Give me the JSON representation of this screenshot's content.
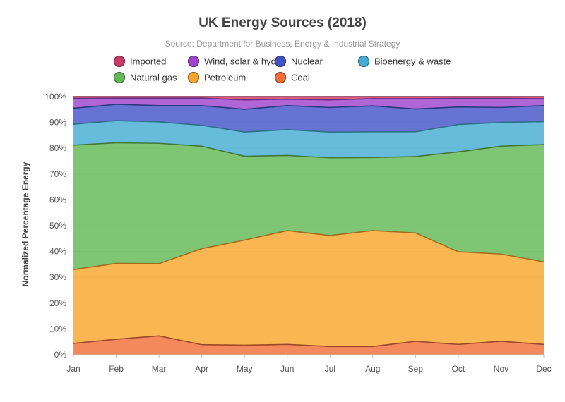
{
  "chart_data": {
    "type": "area",
    "stacked": true,
    "normalized": true,
    "title": "UK Energy Sources (2018)",
    "subtitle": "Source: Department for Business, Energy & Industrial Strategy",
    "xlabel": "",
    "ylabel": "Normalized Percentage Energy",
    "ylim": [
      0,
      100
    ],
    "y_ticks": [
      "0%",
      "10%",
      "20%",
      "30%",
      "40%",
      "50%",
      "60%",
      "70%",
      "80%",
      "90%",
      "100%"
    ],
    "grid": true,
    "legend_position": "top",
    "categories": [
      "Jan",
      "Feb",
      "Mar",
      "Apr",
      "May",
      "Jun",
      "Jul",
      "Aug",
      "Sep",
      "Oct",
      "Nov",
      "Dec"
    ],
    "series": [
      {
        "name": "Coal",
        "color": "#f26f3a",
        "values": [
          4.4,
          6.0,
          7.3,
          3.9,
          3.7,
          4.0,
          3.2,
          3.2,
          5.2,
          4.0,
          5.2,
          4.0
        ]
      },
      {
        "name": "Petroleum",
        "color": "#f9a62d",
        "values": [
          28.6,
          29.4,
          28.0,
          37.2,
          40.7,
          44.1,
          43.0,
          44.9,
          42.0,
          35.9,
          33.8,
          32.0
        ]
      },
      {
        "name": "Natural gas",
        "color": "#62b956",
        "values": [
          48.2,
          46.7,
          46.6,
          39.7,
          32.5,
          29.1,
          30.1,
          28.3,
          29.6,
          38.7,
          41.8,
          45.4
        ]
      },
      {
        "name": "Bioenergy & waste",
        "color": "#45acd3",
        "values": [
          8.1,
          8.6,
          8.3,
          8.1,
          9.4,
          10.0,
          10.0,
          10.0,
          9.6,
          10.6,
          9.2,
          8.9
        ]
      },
      {
        "name": "Nuclear",
        "color": "#4454c8",
        "values": [
          6.2,
          6.3,
          6.3,
          7.6,
          8.8,
          9.3,
          9.5,
          10.0,
          8.8,
          6.8,
          5.8,
          6.2
        ]
      },
      {
        "name": "Wind, solar & hydro",
        "color": "#a044cf",
        "values": [
          3.8,
          2.4,
          2.9,
          2.9,
          3.6,
          2.5,
          2.9,
          2.8,
          4.0,
          3.3,
          3.5,
          2.7
        ]
      },
      {
        "name": "Imported",
        "color": "#cc3b66",
        "values": [
          0.7,
          0.6,
          0.6,
          0.6,
          1.3,
          1.0,
          1.3,
          0.8,
          0.8,
          0.7,
          0.7,
          0.8
        ]
      }
    ],
    "legend_order": [
      "Imported",
      "Wind, solar & hydro",
      "Nuclear",
      "Bioenergy & waste",
      "Natural gas",
      "Petroleum",
      "Coal"
    ]
  }
}
